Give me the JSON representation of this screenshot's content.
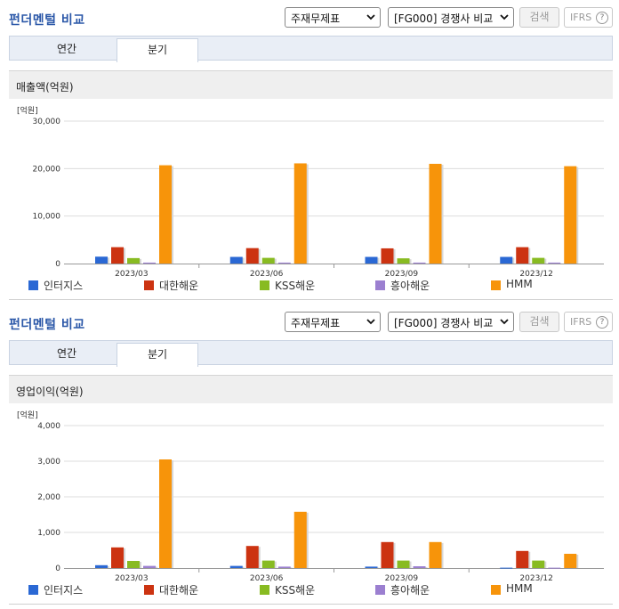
{
  "panels": [
    {
      "title": "펀더멘털 비교",
      "select_statement": "주재무제표",
      "select_compare": "[FG000] 경쟁사 비교",
      "search_label": "검색",
      "ifrs_label": "IFRS",
      "help_glyph": "?",
      "tabs": [
        "연간",
        "분기"
      ],
      "active_tab": "분기",
      "section_title": "매출액(억원)",
      "unit": "[억원]"
    },
    {
      "title": "펀더멘털 비교",
      "select_statement": "주재무제표",
      "select_compare": "[FG000] 경쟁사 비교",
      "search_label": "검색",
      "ifrs_label": "IFRS",
      "help_glyph": "?",
      "tabs": [
        "연간",
        "분기"
      ],
      "active_tab": "분기",
      "section_title": "영업이익(억원)",
      "unit": "[억원]"
    }
  ],
  "colors": {
    "인터지스": "#2a68d4",
    "대한해운": "#cc3311",
    "KSS해운": "#88bb22",
    "흥아해운": "#9b7fd0",
    "HMM": "#f7940a"
  },
  "chart_data": [
    {
      "type": "bar",
      "categories": [
        "2023/03",
        "2023/06",
        "2023/09",
        "2023/12"
      ],
      "ylim": [
        0,
        30000
      ],
      "yticks": [
        0,
        10000,
        20000,
        30000
      ],
      "ytick_labels": [
        "0",
        "10,000",
        "20,000",
        "30,000"
      ],
      "series": [
        {
          "name": "인터지스",
          "values": [
            1450,
            1400,
            1400,
            1400
          ]
        },
        {
          "name": "대한해운",
          "values": [
            3450,
            3250,
            3200,
            3450
          ]
        },
        {
          "name": "KSS해운",
          "values": [
            1150,
            1200,
            1100,
            1200
          ]
        },
        {
          "name": "흥아해운",
          "values": [
            200,
            200,
            200,
            200
          ]
        },
        {
          "name": "HMM",
          "values": [
            20700,
            21100,
            21000,
            20500
          ]
        }
      ],
      "legend_position": "bottom",
      "grid": true
    },
    {
      "type": "bar",
      "categories": [
        "2023/03",
        "2023/06",
        "2023/09",
        "2023/12"
      ],
      "ylim": [
        0,
        4000
      ],
      "yticks": [
        0,
        1000,
        2000,
        3000,
        4000
      ],
      "ytick_labels": [
        "0",
        "1,000",
        "2,000",
        "3,000",
        "4,000"
      ],
      "series": [
        {
          "name": "인터지스",
          "values": [
            80,
            60,
            40,
            10
          ]
        },
        {
          "name": "대한해운",
          "values": [
            580,
            620,
            730,
            480
          ]
        },
        {
          "name": "KSS해운",
          "values": [
            200,
            210,
            210,
            210
          ]
        },
        {
          "name": "흥아해운",
          "values": [
            60,
            40,
            50,
            10
          ]
        },
        {
          "name": "HMM",
          "values": [
            3050,
            1580,
            730,
            400
          ]
        }
      ],
      "legend_position": "bottom",
      "grid": true
    }
  ]
}
